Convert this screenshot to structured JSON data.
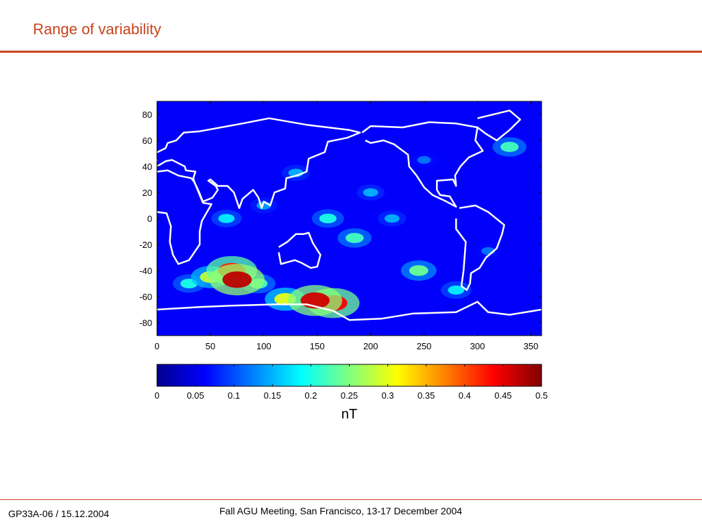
{
  "slide": {
    "title": "Range of variability",
    "footer_left": "GP33A-06 / 15.12.2004",
    "footer_center": "Fall AGU Meeting, San Francisco, 13-17 December 2004"
  },
  "colors": {
    "accent": "#c8431a",
    "coastline": "#ffffff",
    "colormap": [
      "#00008f",
      "#0000ff",
      "#0080ff",
      "#00ffff",
      "#80ff80",
      "#ffff00",
      "#ff8000",
      "#ff0000",
      "#800000"
    ]
  },
  "chart_data": {
    "type": "heatmap",
    "xlim": [
      0,
      360
    ],
    "ylim": [
      -90,
      90
    ],
    "xticks": [
      0,
      50,
      100,
      150,
      200,
      250,
      300,
      350
    ],
    "yticks": [
      80,
      60,
      40,
      20,
      0,
      -20,
      -40,
      -60,
      -80
    ],
    "colorbar": {
      "range": [
        0,
        0.5
      ],
      "ticks": [
        "0",
        "0.05",
        "0.1",
        "0.15",
        "0.2",
        "0.25",
        "0.3",
        "0.35",
        "0.4",
        "0.45",
        "0.5"
      ],
      "label": "nT"
    },
    "baseline_value": 0.06,
    "hotspots": [
      {
        "lon": 75,
        "lat": -47,
        "value": 0.47
      },
      {
        "lon": 70,
        "lat": -40,
        "value": 0.42
      },
      {
        "lon": 148,
        "lat": -63,
        "value": 0.46
      },
      {
        "lon": 165,
        "lat": -65,
        "value": 0.44
      },
      {
        "lon": 120,
        "lat": -62,
        "value": 0.3
      },
      {
        "lon": 50,
        "lat": -45,
        "value": 0.28
      },
      {
        "lon": 95,
        "lat": -50,
        "value": 0.22
      },
      {
        "lon": 245,
        "lat": -40,
        "value": 0.24
      },
      {
        "lon": 330,
        "lat": 55,
        "value": 0.22
      },
      {
        "lon": 185,
        "lat": -15,
        "value": 0.22
      },
      {
        "lon": 160,
        "lat": 0,
        "value": 0.2
      },
      {
        "lon": 65,
        "lat": 0,
        "value": 0.18
      },
      {
        "lon": 200,
        "lat": 20,
        "value": 0.15
      },
      {
        "lon": 220,
        "lat": 0,
        "value": 0.15
      },
      {
        "lon": 30,
        "lat": -50,
        "value": 0.2
      },
      {
        "lon": 280,
        "lat": -55,
        "value": 0.18
      },
      {
        "lon": 130,
        "lat": 35,
        "value": 0.15
      },
      {
        "lon": 100,
        "lat": 10,
        "value": 0.14
      },
      {
        "lon": 250,
        "lat": 45,
        "value": 0.12
      },
      {
        "lon": 310,
        "lat": -25,
        "value": 0.12
      }
    ]
  }
}
